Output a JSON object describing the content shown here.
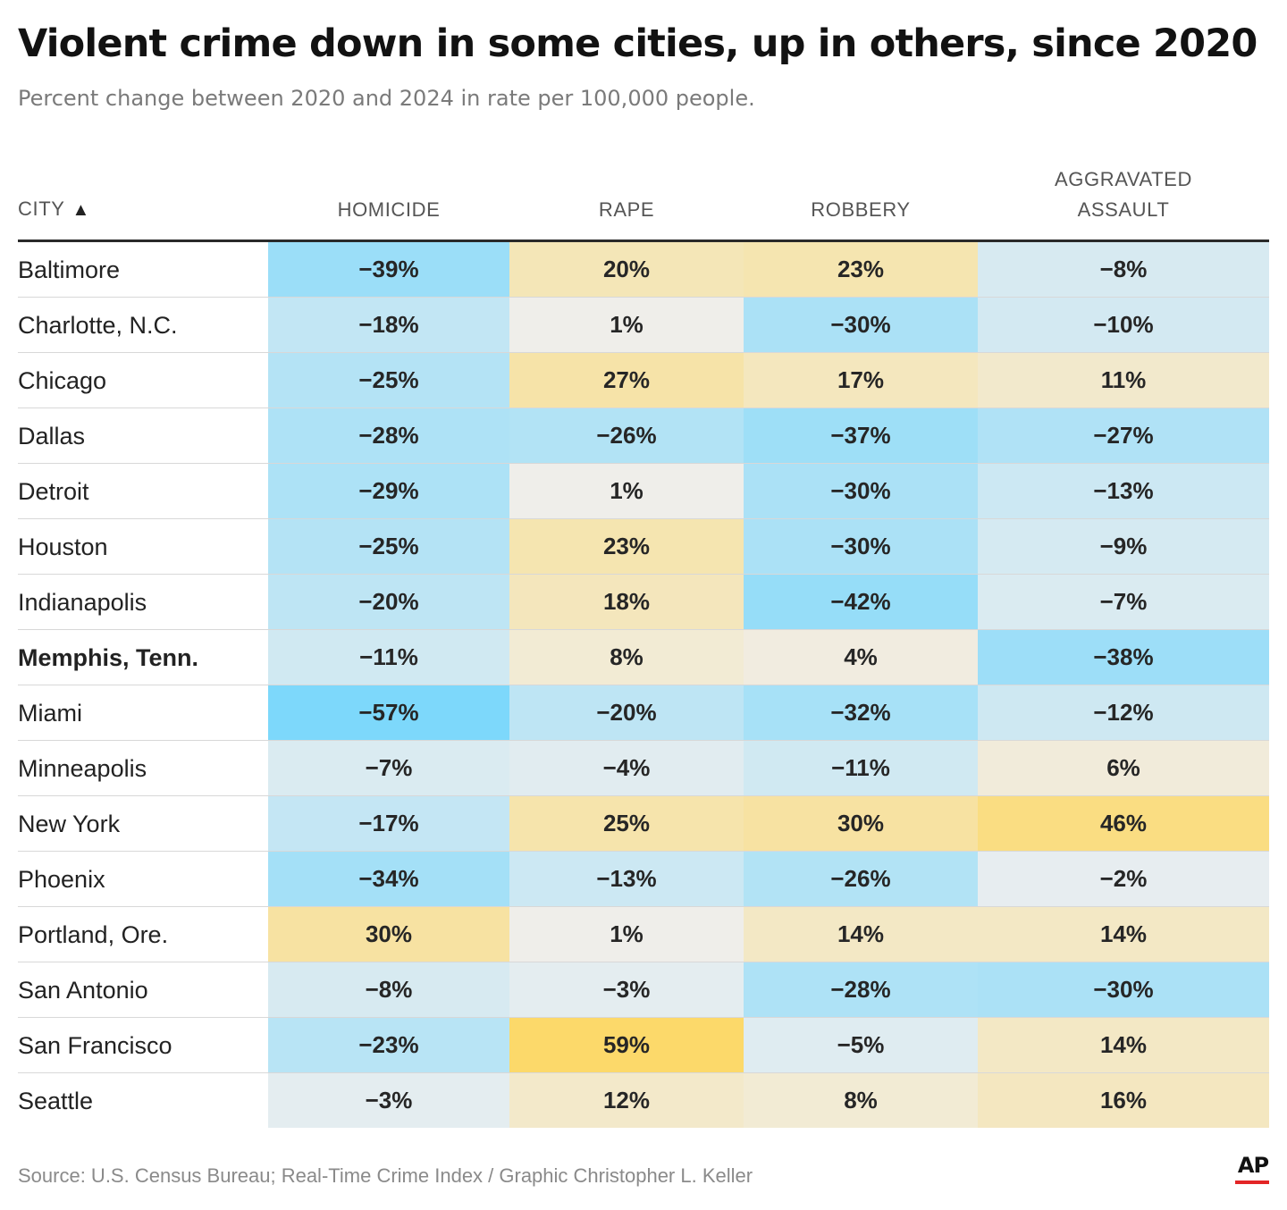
{
  "title": "Violent crime down in some cities, up in others, since 2020",
  "subtitle": "Percent change between 2020 and 2024 in rate per 100,000 people.",
  "source": "Source: U.S. Census Bureau; Real-Time Crime Index / Graphic Christopher L. Keller",
  "logo_text": "AP",
  "colors": {
    "negative_max": "#7dd8fb",
    "neutral": "#efefef",
    "positive_max": "#fcd96a",
    "header_rule": "#2a2a2a",
    "logo_accent": "#e32526"
  },
  "chart_data": {
    "type": "table",
    "sort_column": "city",
    "sort_direction": "ascending",
    "columns": [
      {
        "key": "city",
        "label": "CITY"
      },
      {
        "key": "homicide",
        "label": "HOMICIDE"
      },
      {
        "key": "rape",
        "label": "RAPE"
      },
      {
        "key": "robbery",
        "label": "ROBBERY"
      },
      {
        "key": "aggravated_assault",
        "label": "AGGRAVATED\nASSAULT"
      }
    ],
    "unit": "%",
    "rows": [
      {
        "city": "Baltimore",
        "highlight": false,
        "values": [
          -39,
          20,
          23,
          -8
        ]
      },
      {
        "city": "Charlotte, N.C.",
        "highlight": false,
        "values": [
          -18,
          1,
          -30,
          -10
        ]
      },
      {
        "city": "Chicago",
        "highlight": false,
        "values": [
          -25,
          27,
          17,
          11
        ]
      },
      {
        "city": "Dallas",
        "highlight": false,
        "values": [
          -28,
          -26,
          -37,
          -27
        ]
      },
      {
        "city": "Detroit",
        "highlight": false,
        "values": [
          -29,
          1,
          -30,
          -13
        ]
      },
      {
        "city": "Houston",
        "highlight": false,
        "values": [
          -25,
          23,
          -30,
          -9
        ]
      },
      {
        "city": "Indianapolis",
        "highlight": false,
        "values": [
          -20,
          18,
          -42,
          -7
        ]
      },
      {
        "city": "Memphis, Tenn.",
        "highlight": true,
        "values": [
          -11,
          8,
          4,
          -38
        ]
      },
      {
        "city": "Miami",
        "highlight": false,
        "values": [
          -57,
          -20,
          -32,
          -12
        ]
      },
      {
        "city": "Minneapolis",
        "highlight": false,
        "values": [
          -7,
          -4,
          -11,
          6
        ]
      },
      {
        "city": "New York",
        "highlight": false,
        "values": [
          -17,
          25,
          30,
          46
        ]
      },
      {
        "city": "Phoenix",
        "highlight": false,
        "values": [
          -34,
          -13,
          -26,
          -2
        ]
      },
      {
        "city": "Portland, Ore.",
        "highlight": false,
        "values": [
          30,
          1,
          14,
          14
        ]
      },
      {
        "city": "San Antonio",
        "highlight": false,
        "values": [
          -8,
          -3,
          -28,
          -30
        ]
      },
      {
        "city": "San Francisco",
        "highlight": false,
        "values": [
          -23,
          59,
          -5,
          14
        ]
      },
      {
        "city": "Seattle",
        "highlight": false,
        "values": [
          -3,
          12,
          8,
          16
        ]
      }
    ]
  }
}
